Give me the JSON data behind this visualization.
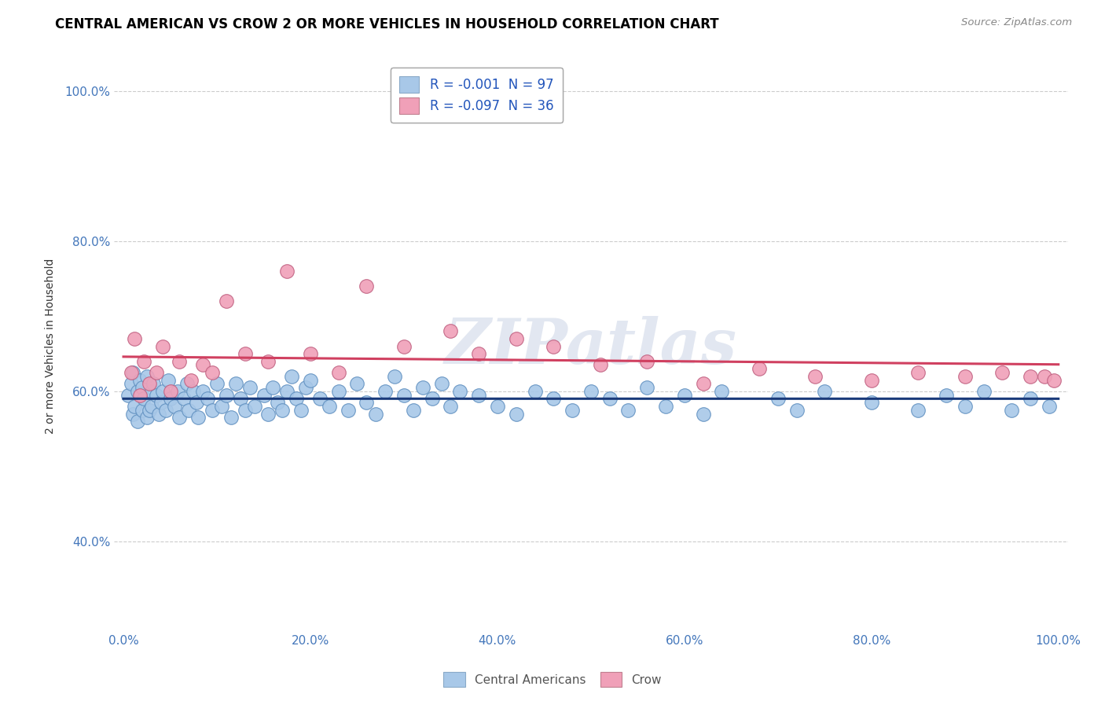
{
  "title": "CENTRAL AMERICAN VS CROW 2 OR MORE VEHICLES IN HOUSEHOLD CORRELATION CHART",
  "source": "Source: ZipAtlas.com",
  "ylabel": "2 or more Vehicles in Household",
  "legend_labels": [
    "Central Americans",
    "Crow"
  ],
  "blue_R": -0.001,
  "blue_N": 97,
  "pink_R": -0.097,
  "pink_N": 36,
  "blue_color": "#A8C8E8",
  "pink_color": "#F0A0B8",
  "blue_line_color": "#1A3A7A",
  "pink_line_color": "#D04060",
  "watermark": "ZIPatlas",
  "xlim": [
    0.0,
    1.0
  ],
  "ylim": [
    0.28,
    1.04
  ],
  "blue_scatter_x": [
    0.005,
    0.008,
    0.01,
    0.01,
    0.012,
    0.015,
    0.015,
    0.018,
    0.02,
    0.02,
    0.022,
    0.025,
    0.025,
    0.028,
    0.03,
    0.03,
    0.032,
    0.035,
    0.038,
    0.04,
    0.042,
    0.045,
    0.048,
    0.05,
    0.055,
    0.058,
    0.06,
    0.065,
    0.068,
    0.07,
    0.075,
    0.078,
    0.08,
    0.085,
    0.09,
    0.095,
    0.1,
    0.105,
    0.11,
    0.115,
    0.12,
    0.125,
    0.13,
    0.135,
    0.14,
    0.15,
    0.155,
    0.16,
    0.165,
    0.17,
    0.175,
    0.18,
    0.185,
    0.19,
    0.195,
    0.2,
    0.21,
    0.22,
    0.23,
    0.24,
    0.25,
    0.26,
    0.27,
    0.28,
    0.29,
    0.3,
    0.31,
    0.32,
    0.33,
    0.34,
    0.35,
    0.36,
    0.38,
    0.4,
    0.42,
    0.44,
    0.46,
    0.48,
    0.5,
    0.52,
    0.54,
    0.56,
    0.58,
    0.6,
    0.62,
    0.64,
    0.7,
    0.72,
    0.75,
    0.8,
    0.85,
    0.88,
    0.9,
    0.92,
    0.95,
    0.97,
    0.99
  ],
  "blue_scatter_y": [
    0.595,
    0.61,
    0.57,
    0.625,
    0.58,
    0.56,
    0.6,
    0.615,
    0.575,
    0.605,
    0.59,
    0.565,
    0.62,
    0.575,
    0.6,
    0.58,
    0.61,
    0.595,
    0.57,
    0.585,
    0.6,
    0.575,
    0.615,
    0.59,
    0.58,
    0.6,
    0.565,
    0.59,
    0.61,
    0.575,
    0.6,
    0.585,
    0.565,
    0.6,
    0.59,
    0.575,
    0.61,
    0.58,
    0.595,
    0.565,
    0.61,
    0.59,
    0.575,
    0.605,
    0.58,
    0.595,
    0.57,
    0.605,
    0.585,
    0.575,
    0.6,
    0.62,
    0.59,
    0.575,
    0.605,
    0.615,
    0.59,
    0.58,
    0.6,
    0.575,
    0.61,
    0.585,
    0.57,
    0.6,
    0.62,
    0.595,
    0.575,
    0.605,
    0.59,
    0.61,
    0.58,
    0.6,
    0.595,
    0.58,
    0.57,
    0.6,
    0.59,
    0.575,
    0.6,
    0.59,
    0.575,
    0.605,
    0.58,
    0.595,
    0.57,
    0.6,
    0.59,
    0.575,
    0.6,
    0.585,
    0.575,
    0.595,
    0.58,
    0.6,
    0.575,
    0.59,
    0.58
  ],
  "pink_scatter_x": [
    0.008,
    0.012,
    0.018,
    0.022,
    0.028,
    0.035,
    0.042,
    0.05,
    0.06,
    0.072,
    0.085,
    0.095,
    0.11,
    0.13,
    0.155,
    0.175,
    0.2,
    0.23,
    0.26,
    0.3,
    0.35,
    0.38,
    0.42,
    0.46,
    0.51,
    0.56,
    0.62,
    0.68,
    0.74,
    0.8,
    0.85,
    0.9,
    0.94,
    0.97,
    0.985,
    0.995
  ],
  "pink_scatter_y": [
    0.625,
    0.67,
    0.595,
    0.64,
    0.61,
    0.625,
    0.66,
    0.6,
    0.64,
    0.615,
    0.635,
    0.625,
    0.72,
    0.65,
    0.64,
    0.76,
    0.65,
    0.625,
    0.74,
    0.66,
    0.68,
    0.65,
    0.67,
    0.66,
    0.635,
    0.64,
    0.61,
    0.63,
    0.62,
    0.615,
    0.625,
    0.62,
    0.625,
    0.62,
    0.62,
    0.615
  ]
}
